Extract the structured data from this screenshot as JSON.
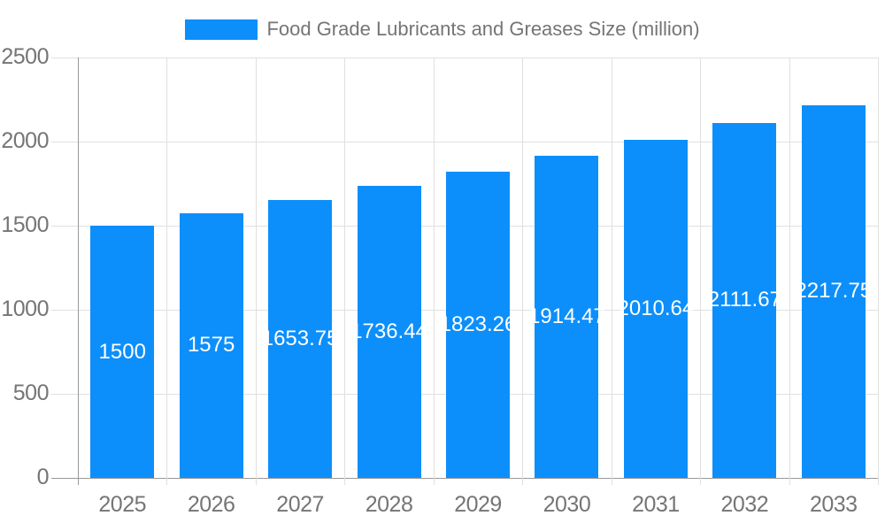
{
  "page": {
    "background": "#ffffff"
  },
  "chart_data": {
    "type": "bar",
    "title": "Food Grade Lubricants and Greases Size (million)",
    "categories": [
      "2025",
      "2026",
      "2027",
      "2028",
      "2029",
      "2030",
      "2031",
      "2032",
      "2033"
    ],
    "values": [
      1500,
      1575,
      1653.75,
      1736.44,
      1823.26,
      1914.47,
      2010.64,
      2111.67,
      2217.75
    ],
    "value_labels": [
      "1500",
      "1575",
      "1653.75",
      "1736.44",
      "1823.26",
      "1914.47",
      "2010.64",
      "2111.67",
      "2217.75"
    ],
    "xlabel": "",
    "ylabel": "",
    "ylim": [
      0,
      2500
    ],
    "yticks": [
      0,
      500,
      1000,
      1500,
      2000,
      2500
    ],
    "grid": true,
    "legend_position": "top",
    "value_label_position": "center",
    "colors": {
      "bar": "#0d8ffb",
      "value_text": "#ffffff",
      "axis_text": "#757575",
      "axis_line": "#999999",
      "gridline": "#e0e0e0"
    }
  }
}
